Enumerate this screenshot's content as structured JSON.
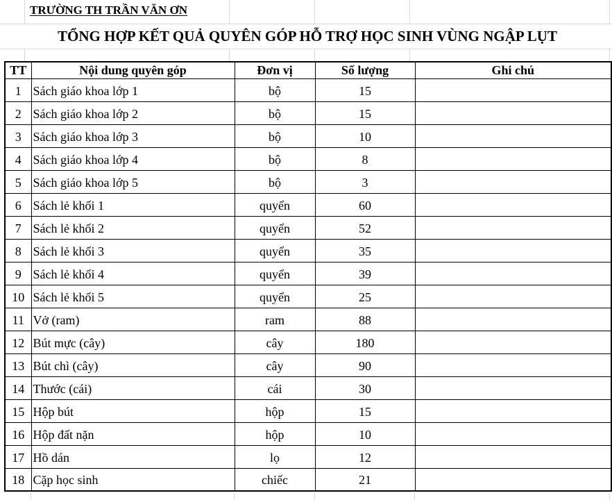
{
  "header": {
    "school_name": "TRƯỜNG TH TRẦN VĂN ƠN",
    "title": "TỔNG HỢP KẾT QUẢ QUYÊN GÓP HỖ TRỢ HỌC SINH VÙNG NGẬP LỤT"
  },
  "table": {
    "columns": [
      "TT",
      "Nội dung quyên góp",
      "Đơn vị",
      "Số lượng",
      "Ghi chú"
    ],
    "rows": [
      {
        "tt": "1",
        "noi_dung": "Sách giáo khoa lớp 1",
        "don_vi": "bộ",
        "so_luong": "15",
        "ghi_chu": ""
      },
      {
        "tt": "2",
        "noi_dung": "Sách giáo khoa lớp 2",
        "don_vi": "bộ",
        "so_luong": "15",
        "ghi_chu": ""
      },
      {
        "tt": "3",
        "noi_dung": "Sách giáo khoa lớp 3",
        "don_vi": "bộ",
        "so_luong": "10",
        "ghi_chu": ""
      },
      {
        "tt": "4",
        "noi_dung": "Sách giáo khoa lớp 4",
        "don_vi": "bộ",
        "so_luong": "8",
        "ghi_chu": ""
      },
      {
        "tt": "5",
        "noi_dung": "Sách giáo khoa lớp 5",
        "don_vi": "bộ",
        "so_luong": "3",
        "ghi_chu": ""
      },
      {
        "tt": "6",
        "noi_dung": "Sách lẻ khối 1",
        "don_vi": "quyển",
        "so_luong": "60",
        "ghi_chu": ""
      },
      {
        "tt": "7",
        "noi_dung": "Sách lẻ khối 2",
        "don_vi": "quyển",
        "so_luong": "52",
        "ghi_chu": ""
      },
      {
        "tt": "8",
        "noi_dung": "Sách lẻ khối 3",
        "don_vi": "quyển",
        "so_luong": "35",
        "ghi_chu": ""
      },
      {
        "tt": "9",
        "noi_dung": "Sách lẻ khối 4",
        "don_vi": "quyển",
        "so_luong": "39",
        "ghi_chu": ""
      },
      {
        "tt": "10",
        "noi_dung": "Sách lẻ khối 5",
        "don_vi": "quyển",
        "so_luong": "25",
        "ghi_chu": ""
      },
      {
        "tt": "11",
        "noi_dung": "Vở (ram)",
        "don_vi": "ram",
        "so_luong": "88",
        "ghi_chu": ""
      },
      {
        "tt": "12",
        "noi_dung": "Bút mực (cây)",
        "don_vi": "cây",
        "so_luong": "180",
        "ghi_chu": ""
      },
      {
        "tt": "13",
        "noi_dung": "Bút chì (cây)",
        "don_vi": "cây",
        "so_luong": "90",
        "ghi_chu": ""
      },
      {
        "tt": "14",
        "noi_dung": "Thước (cái)",
        "don_vi": "cái",
        "so_luong": "30",
        "ghi_chu": ""
      },
      {
        "tt": "15",
        "noi_dung": "Hộp bút",
        "don_vi": "hộp",
        "so_luong": "15",
        "ghi_chu": ""
      },
      {
        "tt": "16",
        "noi_dung": "Hộp đất nặn",
        "don_vi": "hộp",
        "so_luong": "10",
        "ghi_chu": ""
      },
      {
        "tt": "17",
        "noi_dung": "Hồ dán",
        "don_vi": "lọ",
        "so_luong": "12",
        "ghi_chu": ""
      },
      {
        "tt": "18",
        "noi_dung": "Cặp học sinh",
        "don_vi": "chiếc",
        "so_luong": "21",
        "ghi_chu": ""
      }
    ]
  },
  "colors": {
    "text": "#000000",
    "table_border": "#000000",
    "gridline": "#d9d9d9",
    "page_background": "#ffffff"
  }
}
